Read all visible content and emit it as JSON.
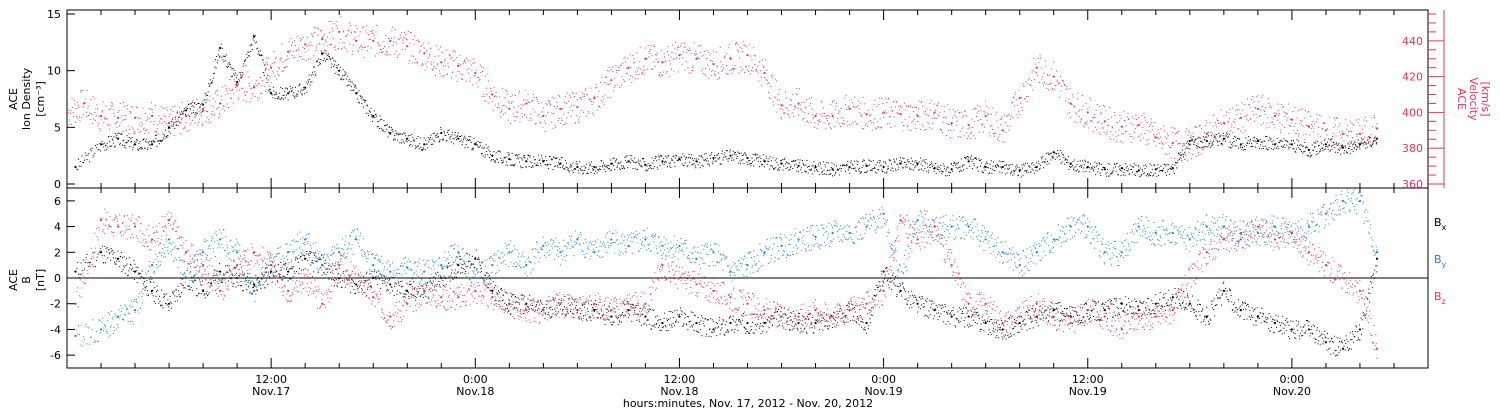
{
  "colors": {
    "black": "#000000",
    "pink": "#e8335f",
    "blue": "#1e82e6"
  },
  "chart_data": [
    {
      "type": "scatter",
      "panel": "top",
      "ylabel_left": [
        "ACE",
        "Ion Density",
        "[cm⁻³]"
      ],
      "ylabel_right": [
        "ACE",
        "Velocity",
        "[km/s]"
      ],
      "ylim_left": [
        0,
        15
      ],
      "ylim_right": [
        360,
        455
      ],
      "left_ticks": [
        "0",
        "5",
        "10",
        "15"
      ],
      "right_ticks": [
        "360",
        "380",
        "400",
        "420",
        "440"
      ],
      "series": [
        {
          "color": "black",
          "axis": "left",
          "x_hours": [
            0.5,
            2,
            3,
            4,
            5,
            6,
            7,
            8,
            9,
            10,
            11,
            12,
            13,
            14,
            15,
            16,
            17,
            18,
            19,
            20,
            21,
            22,
            23,
            24,
            25,
            26,
            27,
            28,
            29,
            30,
            31,
            32,
            33,
            34,
            35,
            36,
            37,
            38,
            39,
            40,
            41,
            42,
            43,
            44,
            45,
            46,
            47,
            48,
            49,
            50,
            51,
            52,
            53,
            54,
            55,
            56,
            57,
            58,
            59,
            60,
            61,
            62,
            63,
            64,
            65,
            66,
            67,
            68,
            69,
            70,
            71,
            72,
            73,
            74,
            75,
            76,
            77
          ],
          "values": [
            1.5,
            3.5,
            4,
            3.5,
            3.5,
            5,
            6.5,
            7,
            12,
            9,
            13,
            8,
            8,
            8.5,
            11.5,
            10,
            8,
            6,
            4.5,
            4,
            3.5,
            4.5,
            4,
            3.5,
            2.5,
            2.2,
            2,
            2,
            1.8,
            1.5,
            1.5,
            1.8,
            2,
            1.7,
            2,
            2.2,
            2,
            2.3,
            2.5,
            2.3,
            2,
            1.8,
            1.6,
            1.5,
            1.3,
            1.5,
            1.6,
            1.5,
            1.8,
            1.8,
            1.4,
            1.3,
            2,
            1.5,
            1.5,
            1.2,
            1.5,
            2.8,
            1.8,
            1.5,
            1.3,
            1.4,
            1.2,
            1.3,
            1.4,
            3.8,
            3.8,
            4,
            3.5,
            3.8,
            3.5,
            3.5,
            3,
            3.5,
            3.2,
            3.5,
            4
          ]
        },
        {
          "color": "pink",
          "axis": "right",
          "x_hours": [
            0,
            1,
            2,
            3,
            4,
            5,
            6,
            7,
            8,
            9,
            10,
            11,
            12,
            13,
            14,
            15,
            16,
            17,
            18,
            19,
            20,
            21,
            22,
            23,
            24,
            25,
            26,
            27,
            28,
            29,
            30,
            31,
            32,
            33,
            34,
            35,
            36,
            37,
            38,
            39,
            40,
            41,
            42,
            43,
            44,
            45,
            46,
            47,
            48,
            49,
            50,
            51,
            52,
            53,
            54,
            55,
            56,
            57,
            58,
            59,
            60,
            61,
            62,
            63,
            64,
            65,
            66,
            67,
            68,
            69,
            70,
            71,
            72,
            73,
            74,
            75,
            76,
            77
          ],
          "values": [
            400,
            405,
            398,
            397,
            397,
            398,
            394,
            398,
            402,
            405,
            415,
            414,
            425,
            434,
            438,
            441,
            445,
            440,
            440,
            440,
            437,
            433,
            428,
            426,
            422,
            410,
            402,
            405,
            398,
            402,
            403,
            408,
            418,
            425,
            430,
            428,
            432,
            430,
            427,
            430,
            432,
            422,
            404,
            405,
            398,
            398,
            402,
            399,
            400,
            399,
            398,
            400,
            394,
            393,
            398,
            390,
            408,
            425,
            420,
            405,
            400,
            395,
            392,
            393,
            386,
            383,
            382,
            388,
            394,
            397,
            402,
            398,
            396,
            392,
            390,
            388,
            388,
            391
          ]
        }
      ]
    },
    {
      "type": "scatter",
      "panel": "bottom",
      "ylabel_left": [
        "ACE",
        "B",
        "[nT]"
      ],
      "ylim": [
        -7,
        7
      ],
      "left_ticks": [
        "-6",
        "-4",
        "-2",
        "0",
        "2",
        "4",
        "6"
      ],
      "legend": [
        {
          "label": "B",
          "sub": "x",
          "color": "black"
        },
        {
          "label": "B",
          "sub": "y",
          "color": "blue"
        },
        {
          "label": "B",
          "sub": "z",
          "color": "pink"
        }
      ],
      "series": [
        {
          "color": "black",
          "x_hours": [
            0.5,
            2,
            3,
            4,
            5,
            6,
            7,
            8,
            9,
            10,
            11,
            12,
            13,
            14,
            15,
            16,
            17,
            18,
            19,
            20,
            21,
            22,
            23,
            24,
            25,
            26,
            27,
            28,
            29,
            30,
            31,
            32,
            33,
            34,
            35,
            36,
            37,
            38,
            39,
            40,
            41,
            42,
            43,
            44,
            45,
            46,
            47,
            48,
            49,
            50,
            51,
            52,
            53,
            54,
            55,
            56,
            57,
            58,
            59,
            60,
            61,
            62,
            63,
            64,
            65,
            66,
            67,
            68,
            69,
            70,
            71,
            72,
            73,
            74,
            75,
            76,
            77
          ],
          "values": [
            0.5,
            2,
            1.5,
            0.5,
            -1,
            -2,
            0,
            -1,
            0.5,
            0,
            -0.5,
            0.5,
            0.5,
            1.5,
            1,
            0,
            -0.5,
            0,
            -0.5,
            -1,
            -1,
            0,
            1,
            1.5,
            -1,
            -2,
            -2,
            -2.5,
            -2,
            -2.5,
            -2.5,
            -3,
            -2.5,
            -3,
            -3.5,
            -3,
            -3.5,
            -4,
            -3.5,
            -3.5,
            -3.5,
            -3,
            -3.5,
            -3.5,
            -3,
            -2.5,
            -3.5,
            0.5,
            -1,
            -2,
            -2.5,
            -3,
            -3,
            -3.5,
            -4,
            -3.5,
            -3,
            -2.5,
            -3,
            -2.5,
            -2.5,
            -2,
            -2.5,
            -2,
            -1.5,
            -2,
            -3,
            -1,
            -2.5,
            -3,
            -3.5,
            -4,
            -4,
            -5,
            -5.5,
            -4,
            1.5
          ]
        },
        {
          "color": "blue",
          "x_hours": [
            0.5,
            2,
            3,
            4,
            5,
            6,
            7,
            8,
            9,
            10,
            11,
            12,
            13,
            14,
            15,
            16,
            17,
            18,
            19,
            20,
            21,
            22,
            23,
            24,
            25,
            26,
            27,
            28,
            29,
            30,
            31,
            32,
            33,
            34,
            35,
            36,
            37,
            38,
            39,
            40,
            41,
            42,
            43,
            44,
            45,
            46,
            47,
            48,
            49,
            50,
            51,
            52,
            53,
            54,
            55,
            56,
            57,
            58,
            59,
            60,
            61,
            62,
            63,
            64,
            65,
            66,
            67,
            68,
            69,
            70,
            71,
            72,
            73,
            74,
            75,
            76,
            77
          ],
          "values": [
            -4.5,
            -4,
            -3,
            -2.5,
            1,
            3,
            0,
            2,
            3,
            2,
            -1,
            1,
            2,
            3,
            1,
            2,
            3,
            1,
            0.5,
            0.8,
            0.5,
            1,
            2,
            0,
            1,
            2,
            1,
            2.5,
            2,
            3,
            2,
            3,
            2.5,
            3,
            2.5,
            2.5,
            1.5,
            2,
            0.5,
            1,
            2,
            2.5,
            3,
            3.2,
            3.5,
            3.5,
            4,
            5,
            0,
            4.5,
            4,
            4,
            4,
            3,
            2,
            1,
            2,
            3,
            4,
            4,
            2,
            2,
            4,
            3.5,
            3.5,
            3,
            4,
            4,
            3.5,
            3.5,
            4,
            3.5,
            4,
            5,
            6,
            6,
            2
          ]
        },
        {
          "color": "pink",
          "x_hours": [
            0.5,
            2,
            3,
            4,
            5,
            6,
            7,
            8,
            9,
            10,
            11,
            12,
            13,
            14,
            15,
            16,
            17,
            18,
            19,
            20,
            21,
            22,
            23,
            24,
            25,
            26,
            27,
            28,
            29,
            30,
            31,
            32,
            33,
            34,
            35,
            36,
            37,
            38,
            39,
            40,
            41,
            42,
            43,
            44,
            45,
            46,
            47,
            48,
            49,
            50,
            51,
            52,
            53,
            54,
            55,
            56,
            57,
            58,
            59,
            60,
            61,
            62,
            63,
            64,
            65,
            66,
            67,
            68,
            69,
            70,
            71,
            72,
            73,
            74,
            75,
            76,
            77
          ],
          "values": [
            -2,
            4.5,
            4,
            4,
            3,
            4.5,
            2,
            1,
            -1,
            1,
            2,
            1,
            -1,
            0,
            -2,
            1,
            0,
            -1.5,
            -3,
            -2,
            -1,
            -1.5,
            -1.5,
            -1,
            -1.5,
            -2,
            -2.5,
            -2.5,
            -2,
            -2.5,
            -2,
            -2.5,
            -2,
            -2,
            1,
            0,
            -0.5,
            -1,
            -1.5,
            -2,
            -2.5,
            -3,
            -3,
            -2.5,
            -3,
            -2.5,
            -2,
            -1,
            4.5,
            3,
            4,
            1,
            -2,
            -2,
            -3.5,
            -3,
            -2,
            -3,
            -3.5,
            -2.5,
            -3,
            -4,
            -3,
            -3,
            -2.5,
            0,
            2,
            3,
            3,
            4,
            3,
            3.5,
            2,
            1,
            0,
            -1,
            -5.5
          ]
        }
      ]
    }
  ],
  "x_axis": {
    "xlim_hours": [
      0,
      80
    ],
    "ticks": [
      {
        "hours": 12,
        "time": "12:00",
        "date": "Nov.17"
      },
      {
        "hours": 24,
        "time": "0:00",
        "date": "Nov.18"
      },
      {
        "hours": 36,
        "time": "12:00",
        "date": "Nov.18"
      },
      {
        "hours": 48,
        "time": "0:00",
        "date": "Nov.19"
      },
      {
        "hours": 60,
        "time": "12:00",
        "date": "Nov.19"
      },
      {
        "hours": 72,
        "time": "0:00",
        "date": "Nov.20"
      }
    ],
    "label": "hours:minutes, Nov. 17, 2012 - Nov. 20, 2012"
  }
}
